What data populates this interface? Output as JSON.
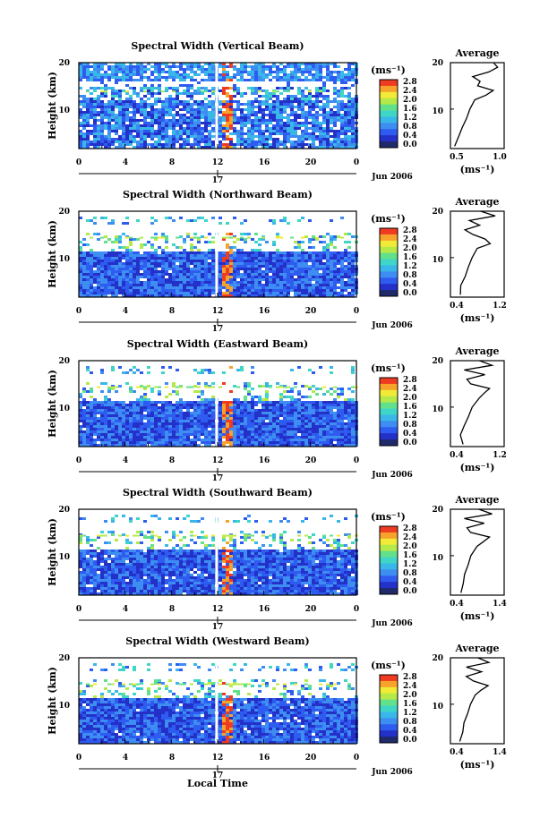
{
  "chart_data": [
    {
      "type": "heatmap",
      "title": "Spectral Width (Vertical Beam)",
      "ylabel": "Height (km)",
      "yticks": [
        "20",
        "10"
      ],
      "xticks": [
        "0",
        "4",
        "8",
        "12",
        "16",
        "20",
        "0"
      ],
      "date_tick": "17",
      "date_label": "Jun 2006",
      "xlim": [
        0,
        24
      ],
      "ylim": [
        1.5,
        20
      ],
      "colorbar": {
        "unit": "(ms⁻¹)",
        "ticks": [
          "2.8",
          "2.4",
          "2.0",
          "1.6",
          "1.2",
          "0.8",
          "0.4",
          "0.0"
        ]
      },
      "profile": {
        "title": "Average",
        "xlabel": "(ms⁻¹)",
        "xticks": [
          "0.5",
          "1.0"
        ],
        "yticks": [
          "20",
          "10"
        ],
        "xlim": [
          0.4,
          1.1
        ],
        "heights": [
          2,
          4,
          6,
          8,
          10,
          12,
          13,
          14,
          15,
          16,
          17,
          18,
          19,
          20
        ],
        "values": [
          0.45,
          0.5,
          0.55,
          0.6,
          0.65,
          0.72,
          0.85,
          0.95,
          0.75,
          0.8,
          0.7,
          0.9,
          1.0,
          0.95
        ]
      }
    },
    {
      "type": "heatmap",
      "title": "Spectral Width (Northward Beam)",
      "ylabel": "Height (km)",
      "yticks": [
        "20",
        "10"
      ],
      "xticks": [
        "0",
        "4",
        "8",
        "12",
        "16",
        "20",
        "0"
      ],
      "date_tick": "17",
      "date_label": "Jun 2006",
      "xlim": [
        0,
        24
      ],
      "ylim": [
        1.5,
        20
      ],
      "colorbar": {
        "unit": "(ms⁻¹)",
        "ticks": [
          "2.8",
          "2.4",
          "2.0",
          "1.6",
          "1.2",
          "0.8",
          "0.4",
          "0.0"
        ]
      },
      "profile": {
        "title": "Average",
        "xlabel": "(ms⁻¹)",
        "xticks": [
          "0.4",
          "1.2"
        ],
        "yticks": [
          "20",
          "10"
        ],
        "xlim": [
          0.3,
          1.4
        ],
        "heights": [
          2,
          4,
          6,
          8,
          10,
          12,
          13,
          14,
          15,
          16,
          17,
          18,
          19,
          20
        ],
        "values": [
          0.5,
          0.52,
          0.6,
          0.68,
          0.75,
          0.85,
          1.1,
          1.0,
          0.75,
          0.6,
          0.9,
          0.7,
          1.2,
          0.9
        ]
      }
    },
    {
      "type": "heatmap",
      "title": "Spectral Width (Eastward Beam)",
      "ylabel": "Height (km)",
      "yticks": [
        "20",
        "10"
      ],
      "xticks": [
        "0",
        "4",
        "8",
        "12",
        "16",
        "20",
        "0"
      ],
      "date_tick": "17",
      "date_label": "Jun 2006",
      "xlim": [
        0,
        24
      ],
      "ylim": [
        1.5,
        20
      ],
      "colorbar": {
        "unit": "(ms⁻¹)",
        "ticks": [
          "2.8",
          "2.4",
          "2.0",
          "1.6",
          "1.2",
          "0.8",
          "0.4",
          "0.0"
        ]
      },
      "profile": {
        "title": "Average",
        "xlabel": "(ms⁻¹)",
        "xticks": [
          "0.4",
          "1.2"
        ],
        "yticks": [
          "20",
          "10"
        ],
        "xlim": [
          0.3,
          1.4
        ],
        "heights": [
          2,
          4,
          6,
          8,
          10,
          12,
          13,
          14,
          15,
          16,
          17,
          18,
          19,
          20
        ],
        "values": [
          0.55,
          0.5,
          0.6,
          0.65,
          0.75,
          0.9,
          1.0,
          1.1,
          0.7,
          0.65,
          1.0,
          0.6,
          1.15,
          0.9
        ]
      }
    },
    {
      "type": "heatmap",
      "title": "Spectral Width (Southward Beam)",
      "ylabel": "Height (km)",
      "yticks": [
        "20",
        "10"
      ],
      "xticks": [
        "0",
        "4",
        "8",
        "12",
        "16",
        "20",
        "0"
      ],
      "date_tick": "17",
      "date_label": "Jun 2006",
      "xlim": [
        0,
        24
      ],
      "ylim": [
        1.5,
        20
      ],
      "colorbar": {
        "unit": "(ms⁻¹)",
        "ticks": [
          "2.8",
          "2.4",
          "2.0",
          "1.6",
          "1.2",
          "0.8",
          "0.4",
          "0.0"
        ]
      },
      "profile": {
        "title": "Average",
        "xlabel": "(ms⁻¹)",
        "xticks": [
          "0.4",
          "1.4"
        ],
        "yticks": [
          "20",
          "10"
        ],
        "xlim": [
          0.3,
          1.6
        ],
        "heights": [
          2,
          4,
          6,
          8,
          10,
          12,
          13,
          14,
          15,
          16,
          17,
          18,
          19,
          20
        ],
        "values": [
          0.55,
          0.6,
          0.65,
          0.72,
          0.8,
          0.95,
          1.1,
          1.25,
          0.8,
          0.7,
          1.1,
          0.65,
          1.3,
          1.0
        ]
      }
    },
    {
      "type": "heatmap",
      "title": "Spectral Width (Westward Beam)",
      "ylabel": "Height (km)",
      "yticks": [
        "20",
        "10"
      ],
      "xticks": [
        "0",
        "4",
        "8",
        "12",
        "16",
        "20",
        "0"
      ],
      "date_tick": "17",
      "date_label": "Jun 2006",
      "xlim": [
        0,
        24
      ],
      "ylim": [
        1.5,
        20
      ],
      "colorbar": {
        "unit": "(ms⁻¹)",
        "ticks": [
          "2.8",
          "2.4",
          "2.0",
          "1.6",
          "1.2",
          "0.8",
          "0.4",
          "0.0"
        ]
      },
      "profile": {
        "title": "Average",
        "xlabel": "(ms⁻¹)",
        "xticks": [
          "0.4",
          "1.4"
        ],
        "yticks": [
          "20",
          "10"
        ],
        "xlim": [
          0.3,
          1.6
        ],
        "heights": [
          2,
          4,
          6,
          8,
          10,
          12,
          13,
          14,
          15,
          16,
          17,
          18,
          19,
          20
        ],
        "values": [
          0.52,
          0.58,
          0.62,
          0.7,
          0.78,
          0.9,
          1.05,
          1.2,
          0.85,
          0.7,
          1.05,
          0.7,
          1.25,
          0.95
        ]
      }
    }
  ],
  "xlabel_bottom": "Local Time",
  "colors": {
    "scale": [
      "#1f2a6b",
      "#2331c8",
      "#2f5cf0",
      "#3e8df2",
      "#39b7e8",
      "#3fd6c8",
      "#63e08a",
      "#b5e94a",
      "#f1ea36",
      "#f7a22a",
      "#ef3b22"
    ]
  }
}
